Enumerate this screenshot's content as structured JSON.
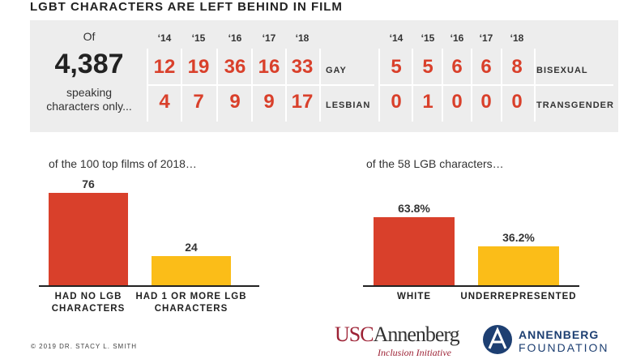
{
  "title": "LGBT CHARACTERS ARE LEFT BEHIND IN FILM",
  "summary": {
    "pre": "Of",
    "number": "4,387",
    "post": "speaking characters only..."
  },
  "table": {
    "left": {
      "years": [
        "‘14",
        "‘15",
        "‘16",
        "‘17",
        "‘18"
      ],
      "rows": [
        {
          "label": "GAY",
          "values": [
            12,
            19,
            36,
            16,
            33
          ]
        },
        {
          "label": "LESBIAN",
          "values": [
            4,
            7,
            9,
            9,
            17
          ]
        }
      ]
    },
    "right": {
      "years": [
        "‘14",
        "‘15",
        "‘16",
        "‘17",
        "‘18"
      ],
      "rows": [
        {
          "label": "BISEXUAL",
          "values": [
            5,
            5,
            6,
            6,
            8
          ]
        },
        {
          "label": "TRANSGENDER",
          "values": [
            0,
            1,
            0,
            0,
            0
          ]
        }
      ]
    }
  },
  "chart_data": [
    {
      "type": "bar",
      "subtitle": "of the 100 top films of 2018…",
      "categories": [
        "HAD NO LGB CHARACTERS",
        "HAD 1 OR MORE LGB CHARACTERS"
      ],
      "values": [
        76,
        24
      ],
      "colors": [
        "#d9402b",
        "#fbbd18"
      ]
    },
    {
      "type": "bar",
      "subtitle": "of the 58 LGB characters…",
      "categories": [
        "WHITE",
        "UNDERREPRESENTED"
      ],
      "values": [
        63.8,
        36.2
      ],
      "value_labels": [
        "63.8%",
        "36.2%"
      ],
      "colors": [
        "#d9402b",
        "#fbbd18"
      ]
    }
  ],
  "footer": {
    "copyright": "© 2019 DR. STACY L. SMITH",
    "usc": "USC",
    "annenberg": "Annenberg",
    "initiative": "Inclusion Initiative",
    "foundation_1": "ANNENBERG",
    "foundation_2": "FOUNDATION"
  }
}
